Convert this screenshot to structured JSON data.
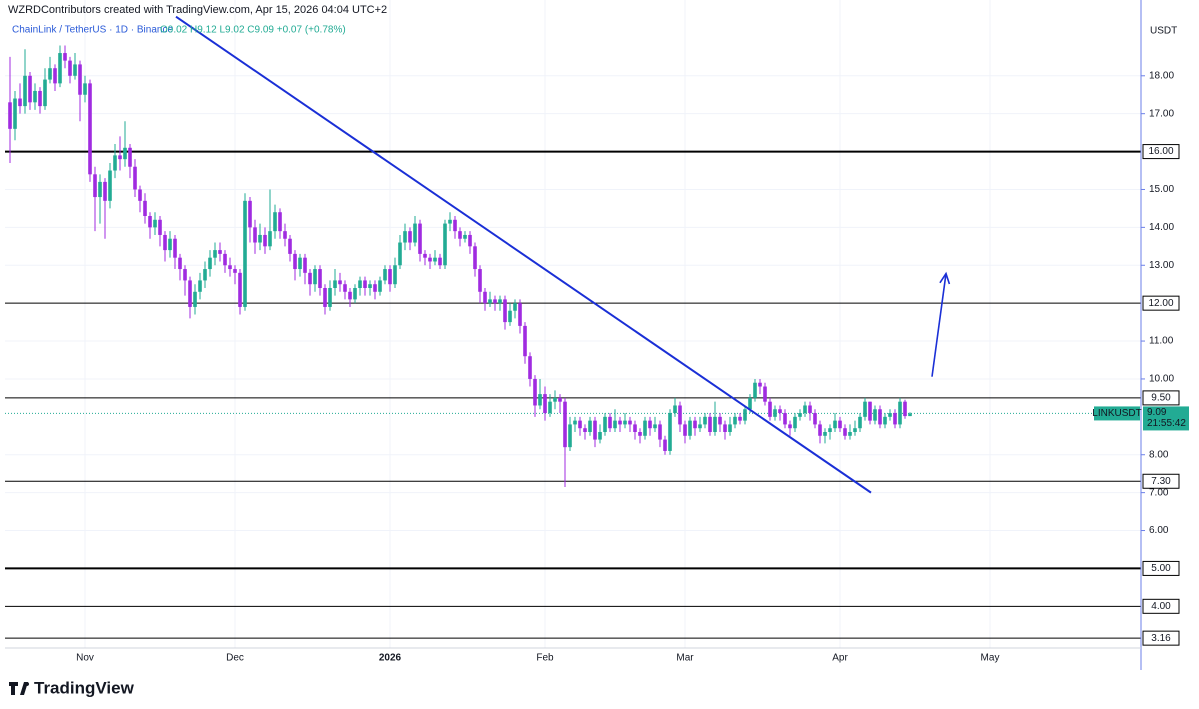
{
  "chart_data": {
    "type": "candlestick",
    "title": "WZRDContributors created with TradingView.com, Apr 15, 2026 04:04 UTC+2",
    "symbol": "ChainLink / TetherUS · 1D · Binance",
    "legend": "O9.02 H9.12 L9.02 C9.09 +0.07 (+0.78%)",
    "unit": "USDT",
    "up_color": "#22ab94",
    "down_color": "#a02be0",
    "candles": [
      [
        17.3,
        18.5,
        15.7,
        16.6
      ],
      [
        16.6,
        17.6,
        16.3,
        17.4
      ],
      [
        17.4,
        17.8,
        17.0,
        17.2
      ],
      [
        17.2,
        18.7,
        17.0,
        18.0
      ],
      [
        18.0,
        18.1,
        17.1,
        17.3
      ],
      [
        17.3,
        17.8,
        17.1,
        17.6
      ],
      [
        17.6,
        17.7,
        17.0,
        17.2
      ],
      [
        17.2,
        18.2,
        17.1,
        17.9
      ],
      [
        17.9,
        18.5,
        17.8,
        18.2
      ],
      [
        18.2,
        18.3,
        17.6,
        17.8
      ],
      [
        17.8,
        18.8,
        17.7,
        18.6
      ],
      [
        18.6,
        18.8,
        18.2,
        18.4
      ],
      [
        18.4,
        18.5,
        17.8,
        18.0
      ],
      [
        18.0,
        18.6,
        17.9,
        18.3
      ],
      [
        18.3,
        18.4,
        16.8,
        17.5
      ],
      [
        17.5,
        18.0,
        17.3,
        17.8
      ],
      [
        17.8,
        17.9,
        15.2,
        15.4
      ],
      [
        15.4,
        15.6,
        13.9,
        14.8
      ],
      [
        14.8,
        15.4,
        14.1,
        15.2
      ],
      [
        15.2,
        15.3,
        13.7,
        14.7
      ],
      [
        14.7,
        15.7,
        14.5,
        15.5
      ],
      [
        15.5,
        16.2,
        15.3,
        15.9
      ],
      [
        15.9,
        16.4,
        15.5,
        15.8
      ],
      [
        15.8,
        16.8,
        15.6,
        16.1
      ],
      [
        16.1,
        16.2,
        15.3,
        15.6
      ],
      [
        15.6,
        15.8,
        14.8,
        15.0
      ],
      [
        15.0,
        15.1,
        14.4,
        14.7
      ],
      [
        14.7,
        14.9,
        14.1,
        14.3
      ],
      [
        14.3,
        14.4,
        13.7,
        14.0
      ],
      [
        14.0,
        14.4,
        13.8,
        14.2
      ],
      [
        14.2,
        14.3,
        13.5,
        13.8
      ],
      [
        13.8,
        13.9,
        13.1,
        13.4
      ],
      [
        13.4,
        13.9,
        13.2,
        13.7
      ],
      [
        13.7,
        13.8,
        12.9,
        13.2
      ],
      [
        13.2,
        13.3,
        12.6,
        12.9
      ],
      [
        12.9,
        13.0,
        12.2,
        12.6
      ],
      [
        12.6,
        12.7,
        11.6,
        11.9
      ],
      [
        11.9,
        12.5,
        11.7,
        12.3
      ],
      [
        12.3,
        12.8,
        12.1,
        12.6
      ],
      [
        12.6,
        13.1,
        12.4,
        12.9
      ],
      [
        12.9,
        13.4,
        12.7,
        13.2
      ],
      [
        13.2,
        13.6,
        13.0,
        13.4
      ],
      [
        13.4,
        13.6,
        13.1,
        13.3
      ],
      [
        13.3,
        13.4,
        12.8,
        13.0
      ],
      [
        13.0,
        13.2,
        12.7,
        12.9
      ],
      [
        12.9,
        13.0,
        12.5,
        12.8
      ],
      [
        12.8,
        12.9,
        11.7,
        11.9
      ],
      [
        11.9,
        14.9,
        11.8,
        14.7
      ],
      [
        14.7,
        14.8,
        13.6,
        14.0
      ],
      [
        14.0,
        14.2,
        13.3,
        13.6
      ],
      [
        13.6,
        14.1,
        13.4,
        13.8
      ],
      [
        13.8,
        14.0,
        13.3,
        13.5
      ],
      [
        13.5,
        15.0,
        13.4,
        13.9
      ],
      [
        13.9,
        14.6,
        13.7,
        14.4
      ],
      [
        14.4,
        14.5,
        13.7,
        13.9
      ],
      [
        13.9,
        14.1,
        13.5,
        13.7
      ],
      [
        13.7,
        13.8,
        13.1,
        13.3
      ],
      [
        13.3,
        13.4,
        12.6,
        12.9
      ],
      [
        12.9,
        13.3,
        12.7,
        13.2
      ],
      [
        13.2,
        13.3,
        12.5,
        12.8
      ],
      [
        12.8,
        12.9,
        12.2,
        12.5
      ],
      [
        12.5,
        13.0,
        12.3,
        12.9
      ],
      [
        12.9,
        13.0,
        12.2,
        12.4
      ],
      [
        12.4,
        12.5,
        11.7,
        11.9
      ],
      [
        11.9,
        12.6,
        11.8,
        12.4
      ],
      [
        12.4,
        12.9,
        12.2,
        12.6
      ],
      [
        12.6,
        12.8,
        12.3,
        12.5
      ],
      [
        12.5,
        12.6,
        12.1,
        12.3
      ],
      [
        12.3,
        12.4,
        11.9,
        12.1
      ],
      [
        12.1,
        12.5,
        12.0,
        12.4
      ],
      [
        12.4,
        12.7,
        12.2,
        12.6
      ],
      [
        12.6,
        12.7,
        12.2,
        12.4
      ],
      [
        12.4,
        12.6,
        12.2,
        12.5
      ],
      [
        12.5,
        12.6,
        12.1,
        12.3
      ],
      [
        12.3,
        12.7,
        12.2,
        12.6
      ],
      [
        12.6,
        13.0,
        12.5,
        12.9
      ],
      [
        12.9,
        13.0,
        12.3,
        12.5
      ],
      [
        12.5,
        13.2,
        12.4,
        13.0
      ],
      [
        13.0,
        13.8,
        12.9,
        13.6
      ],
      [
        13.6,
        14.1,
        13.4,
        13.9
      ],
      [
        13.9,
        14.0,
        13.4,
        13.6
      ],
      [
        13.6,
        14.3,
        13.5,
        14.1
      ],
      [
        14.1,
        14.2,
        13.1,
        13.3
      ],
      [
        13.3,
        13.4,
        13.0,
        13.2
      ],
      [
        13.2,
        13.3,
        12.9,
        13.1
      ],
      [
        13.1,
        13.4,
        13.0,
        13.2
      ],
      [
        13.2,
        13.3,
        12.9,
        13.0
      ],
      [
        13.0,
        14.2,
        12.9,
        14.1
      ],
      [
        14.1,
        14.4,
        13.9,
        14.2
      ],
      [
        14.2,
        14.3,
        13.7,
        13.9
      ],
      [
        13.9,
        14.0,
        13.5,
        13.7
      ],
      [
        13.7,
        13.9,
        13.6,
        13.8
      ],
      [
        13.8,
        13.9,
        13.3,
        13.5
      ],
      [
        13.5,
        13.6,
        12.7,
        12.9
      ],
      [
        12.9,
        13.0,
        12.0,
        12.3
      ],
      [
        12.3,
        12.4,
        11.8,
        12.0
      ],
      [
        12.0,
        12.3,
        11.9,
        12.1
      ],
      [
        12.1,
        12.2,
        11.8,
        12.0
      ],
      [
        12.0,
        12.2,
        11.8,
        12.1
      ],
      [
        12.1,
        12.2,
        11.3,
        11.5
      ],
      [
        11.5,
        12.0,
        11.4,
        11.8
      ],
      [
        11.8,
        12.1,
        11.6,
        12.0
      ],
      [
        12.0,
        12.1,
        11.2,
        11.4
      ],
      [
        11.4,
        11.5,
        10.4,
        10.6
      ],
      [
        10.6,
        10.7,
        9.8,
        10.0
      ],
      [
        10.0,
        10.1,
        9.0,
        9.3
      ],
      [
        9.3,
        10.0,
        9.2,
        9.6
      ],
      [
        9.6,
        9.8,
        8.9,
        9.1
      ],
      [
        9.1,
        9.6,
        9.0,
        9.4
      ],
      [
        9.4,
        9.7,
        9.2,
        9.5
      ],
      [
        9.5,
        9.6,
        9.1,
        9.4
      ],
      [
        9.4,
        9.5,
        7.15,
        8.2
      ],
      [
        8.2,
        9.0,
        8.1,
        8.8
      ],
      [
        8.8,
        9.0,
        8.6,
        8.9
      ],
      [
        8.9,
        9.0,
        8.5,
        8.7
      ],
      [
        8.7,
        8.8,
        8.4,
        8.6
      ],
      [
        8.6,
        9.0,
        8.5,
        8.9
      ],
      [
        8.9,
        9.0,
        8.2,
        8.4
      ],
      [
        8.4,
        8.8,
        8.3,
        8.6
      ],
      [
        8.6,
        9.1,
        8.5,
        9.0
      ],
      [
        9.0,
        9.1,
        8.6,
        8.7
      ],
      [
        8.7,
        9.2,
        8.6,
        8.9
      ],
      [
        8.9,
        9.0,
        8.6,
        8.8
      ],
      [
        8.8,
        9.1,
        8.7,
        8.9
      ],
      [
        8.9,
        9.0,
        8.6,
        8.8
      ],
      [
        8.8,
        8.9,
        8.4,
        8.6
      ],
      [
        8.6,
        8.7,
        8.3,
        8.5
      ],
      [
        8.5,
        9.0,
        8.4,
        8.9
      ],
      [
        8.9,
        9.0,
        8.5,
        8.7
      ],
      [
        8.7,
        9.0,
        8.6,
        8.8
      ],
      [
        8.8,
        8.9,
        8.2,
        8.4
      ],
      [
        8.4,
        8.5,
        8.0,
        8.1
      ],
      [
        8.1,
        9.2,
        8.0,
        9.1
      ],
      [
        9.1,
        9.5,
        9.0,
        9.3
      ],
      [
        9.3,
        9.4,
        8.6,
        8.8
      ],
      [
        8.8,
        8.9,
        8.3,
        8.5
      ],
      [
        8.5,
        9.0,
        8.4,
        8.9
      ],
      [
        8.9,
        9.0,
        8.5,
        8.7
      ],
      [
        8.7,
        9.0,
        8.6,
        8.8
      ],
      [
        8.8,
        9.1,
        8.7,
        9.0
      ],
      [
        9.0,
        9.1,
        8.5,
        8.6
      ],
      [
        8.6,
        9.4,
        8.5,
        9.0
      ],
      [
        9.0,
        9.1,
        8.6,
        8.8
      ],
      [
        8.8,
        8.9,
        8.4,
        8.6
      ],
      [
        8.6,
        9.0,
        8.5,
        8.8
      ],
      [
        8.8,
        9.1,
        8.7,
        9.0
      ],
      [
        9.0,
        9.1,
        8.8,
        8.9
      ],
      [
        8.9,
        9.3,
        8.8,
        9.2
      ],
      [
        9.2,
        9.6,
        9.1,
        9.5
      ],
      [
        9.5,
        10.0,
        9.4,
        9.9
      ],
      [
        9.9,
        10.0,
        9.6,
        9.8
      ],
      [
        9.8,
        9.9,
        9.3,
        9.4
      ],
      [
        9.4,
        9.5,
        8.9,
        9.0
      ],
      [
        9.0,
        9.3,
        8.9,
        9.2
      ],
      [
        9.2,
        9.3,
        8.9,
        9.1
      ],
      [
        9.1,
        9.2,
        8.7,
        8.8
      ],
      [
        8.8,
        8.9,
        8.5,
        8.7
      ],
      [
        8.7,
        9.1,
        8.6,
        9.0
      ],
      [
        9.0,
        9.2,
        8.9,
        9.1
      ],
      [
        9.1,
        9.4,
        9.0,
        9.3
      ],
      [
        9.3,
        9.4,
        8.9,
        9.1
      ],
      [
        9.1,
        9.2,
        8.7,
        8.8
      ],
      [
        8.8,
        8.9,
        8.3,
        8.5
      ],
      [
        8.5,
        8.7,
        8.3,
        8.6
      ],
      [
        8.6,
        8.8,
        8.4,
        8.7
      ],
      [
        8.7,
        9.1,
        8.6,
        8.9
      ],
      [
        8.9,
        9.0,
        8.6,
        8.7
      ],
      [
        8.7,
        8.8,
        8.4,
        8.5
      ],
      [
        8.5,
        8.8,
        8.4,
        8.6
      ],
      [
        8.6,
        8.9,
        8.5,
        8.7
      ],
      [
        8.7,
        9.1,
        8.6,
        9.0
      ],
      [
        9.0,
        9.5,
        8.9,
        9.4
      ],
      [
        9.4,
        9.4,
        8.8,
        8.9
      ],
      [
        8.9,
        9.3,
        8.8,
        9.2
      ],
      [
        9.2,
        9.3,
        8.7,
        8.8
      ],
      [
        8.8,
        9.1,
        8.7,
        9.0
      ],
      [
        9.0,
        9.2,
        8.9,
        9.1
      ],
      [
        9.1,
        9.2,
        8.7,
        8.8
      ],
      [
        8.8,
        9.5,
        8.7,
        9.4
      ],
      [
        9.4,
        9.45,
        8.95,
        9.02
      ],
      [
        9.02,
        9.12,
        9.02,
        9.09
      ]
    ],
    "xlim": [
      -1,
      226.2
    ],
    "xticks": [
      {
        "value": 15,
        "label": "Nov"
      },
      {
        "value": 45,
        "label": "Dec"
      },
      {
        "value": 76,
        "label": "2026",
        "bold": true
      },
      {
        "value": 107,
        "label": "Feb"
      },
      {
        "value": 135,
        "label": "Mar"
      },
      {
        "value": 166,
        "label": "Apr"
      },
      {
        "value": 196,
        "label": "May"
      }
    ],
    "ylim": [
      2.9,
      20.0
    ],
    "yticks": [
      {
        "value": 6,
        "label": "6.00"
      },
      {
        "value": 7,
        "label": "7.00"
      },
      {
        "value": 8,
        "label": "8.00"
      },
      {
        "value": 10,
        "label": "10.00"
      },
      {
        "value": 11,
        "label": "11.00"
      },
      {
        "value": 13,
        "label": "13.00"
      },
      {
        "value": 14,
        "label": "14.00"
      },
      {
        "value": 15,
        "label": "15.00"
      },
      {
        "value": 17,
        "label": "17.00"
      },
      {
        "value": 18,
        "label": "18.00"
      }
    ],
    "grid": true,
    "hlines": [
      {
        "value": 16,
        "label": "16.00",
        "bold": true
      },
      {
        "value": 12,
        "label": "12.00"
      },
      {
        "value": 9.5,
        "label": "9.50"
      },
      {
        "value": 7.3,
        "label": "7.30"
      },
      {
        "value": 5,
        "label": "5.00",
        "bold": true
      },
      {
        "value": 4,
        "label": "4.00"
      },
      {
        "value": 3.16,
        "label": "3.16"
      }
    ],
    "last": {
      "name": "LINKUSDT",
      "value": 9.09,
      "label": "9.09",
      "countdown": "21:55:42"
    },
    "trendline": {
      "color": "#1a2fd6",
      "from": [
        33.2,
        19.56
      ],
      "to": [
        172.2,
        7.0
      ]
    },
    "arrow": {
      "color": "#1a2fd6",
      "from": [
        184.4,
        10.06
      ],
      "to": [
        187.2,
        12.78
      ]
    }
  },
  "brand": "TradingView"
}
